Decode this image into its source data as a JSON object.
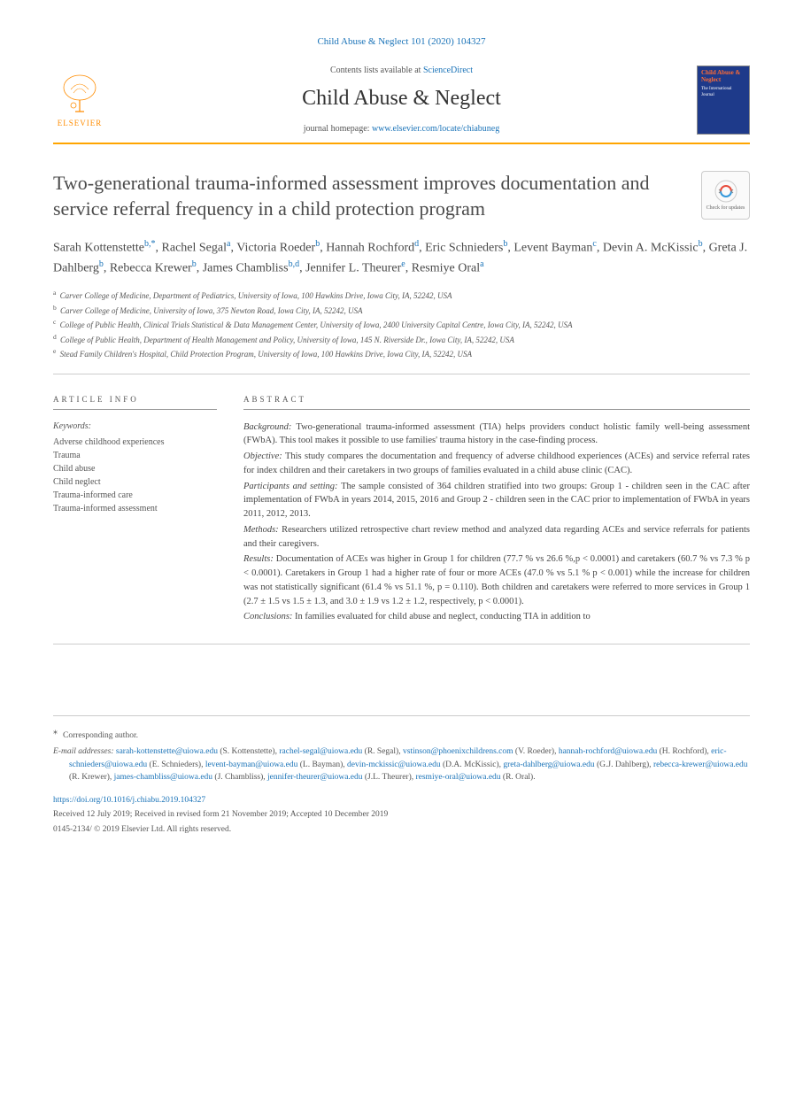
{
  "citation": "Child Abuse & Neglect 101 (2020) 104327",
  "header": {
    "contents_prefix": "Contents lists available at ",
    "contents_link": "ScienceDirect",
    "journal_name": "Child Abuse & Neglect",
    "homepage_prefix": "journal homepage: ",
    "homepage_link": "www.elsevier.com/locate/chiabuneg",
    "elsevier_label": "ELSEVIER",
    "cover_title": "Child Abuse & Neglect",
    "cover_sub": "The International Journal"
  },
  "title": "Two-generational trauma-informed assessment improves documentation and service referral frequency in a child protection program",
  "check_updates": "Check for updates",
  "authors_html": "Sarah Kottenstette|b,*|, Rachel Segal|a|, Victoria Roeder|b|, Hannah Rochford|d|, Eric Schnieders|b|, Levent Bayman|c|, Devin A. McKissic|b|, Greta J. Dahlberg|b|, Rebecca Krewer|b|, James Chambliss|b,d|, Jennifer L. Theurer|e|, Resmiye Oral|a|",
  "affiliations": [
    {
      "sup": "a",
      "text": "Carver College of Medicine, Department of Pediatrics, University of Iowa, 100 Hawkins Drive, Iowa City, IA, 52242, USA"
    },
    {
      "sup": "b",
      "text": "Carver College of Medicine, University of Iowa, 375 Newton Road, Iowa City, IA, 52242, USA"
    },
    {
      "sup": "c",
      "text": "College of Public Health, Clinical Trials Statistical & Data Management Center, University of Iowa, 2400 University Capital Centre, Iowa City, IA, 52242, USA"
    },
    {
      "sup": "d",
      "text": "College of Public Health, Department of Health Management and Policy, University of Iowa, 145 N. Riverside Dr., Iowa City, IA, 52242, USA"
    },
    {
      "sup": "e",
      "text": "Stead Family Children's Hospital, Child Protection Program, University of Iowa, 100 Hawkins Drive, Iowa City, IA, 52242, USA"
    }
  ],
  "article_info": {
    "heading": "ARTICLE INFO",
    "keywords_label": "Keywords:",
    "keywords": [
      "Adverse childhood experiences",
      "Trauma",
      "Child abuse",
      "Child neglect",
      "Trauma-informed care",
      "Trauma-informed assessment"
    ]
  },
  "abstract": {
    "heading": "ABSTRACT",
    "sections": [
      {
        "label": "Background:",
        "text": "Two-generational trauma-informed assessment (TIA) helps providers conduct holistic family well-being assessment (FWbA). This tool makes it possible to use families' trauma history in the case-finding process."
      },
      {
        "label": "Objective:",
        "text": "This study compares the documentation and frequency of adverse childhood experiences (ACEs) and service referral rates for index children and their caretakers in two groups of families evaluated in a child abuse clinic (CAC)."
      },
      {
        "label": "Participants and setting:",
        "text": "The sample consisted of 364 children stratified into two groups: Group 1 - children seen in the CAC after implementation of FWbA in years 2014, 2015, 2016 and Group 2 - children seen in the CAC prior to implementation of FWbA in years 2011, 2012, 2013."
      },
      {
        "label": "Methods:",
        "text": "Researchers utilized retrospective chart review method and analyzed data regarding ACEs and service referrals for patients and their caregivers."
      },
      {
        "label": "Results:",
        "text": "Documentation of ACEs was higher in Group 1 for children (77.7 % vs 26.6 %,p < 0.0001) and caretakers (60.7 % vs 7.3 % p <  0.0001). Caretakers in Group 1 had a higher rate of four or more ACEs (47.0 % vs 5.1 % p <  0.001) while the increase for children was not statistically significant (61.4 % vs 51.1 %, p =  0.110). Both children and caretakers were referred to more services in Group 1 (2.7 ± 1.5 vs 1.5 ± 1.3, and 3.0 ± 1.9 vs 1.2 ± 1.2, respectively, p <  0.0001)."
      },
      {
        "label": "Conclusions:",
        "text": "In families evaluated for child abuse and neglect, conducting TIA in addition to"
      }
    ]
  },
  "footer": {
    "corresponding_marker": "⁎",
    "corresponding_text": "Corresponding author.",
    "emails_label": "E-mail addresses:",
    "emails": [
      {
        "email": "sarah-kottenstette@uiowa.edu",
        "name": "(S. Kottenstette)"
      },
      {
        "email": "rachel-segal@uiowa.edu",
        "name": "(R. Segal)"
      },
      {
        "email": "vstinson@phoenixchildrens.com",
        "name": "(V. Roeder)"
      },
      {
        "email": "hannah-rochford@uiowa.edu",
        "name": "(H. Rochford)"
      },
      {
        "email": "eric-schnieders@uiowa.edu",
        "name": "(E. Schnieders)"
      },
      {
        "email": "levent-bayman@uiowa.edu",
        "name": "(L. Bayman)"
      },
      {
        "email": "devin-mckissic@uiowa.edu",
        "name": "(D.A. McKissic)"
      },
      {
        "email": "greta-dahlberg@uiowa.edu",
        "name": "(G.J. Dahlberg)"
      },
      {
        "email": "rebecca-krewer@uiowa.edu",
        "name": "(R. Krewer)"
      },
      {
        "email": "james-chambliss@uiowa.edu",
        "name": "(J. Chambliss)"
      },
      {
        "email": "jennifer-theurer@uiowa.edu",
        "name": "(J.L. Theurer)"
      },
      {
        "email": "resmiye-oral@uiowa.edu",
        "name": "(R. Oral)"
      }
    ],
    "doi": "https://doi.org/10.1016/j.chiabu.2019.104327",
    "received": "Received 12 July 2019; Received in revised form 21 November 2019; Accepted 10 December 2019",
    "copyright": "0145-2134/ © 2019 Elsevier Ltd. All rights reserved."
  },
  "colors": {
    "link": "#1a73b8",
    "accent": "#ffa500",
    "text": "#333333",
    "muted": "#555555"
  }
}
